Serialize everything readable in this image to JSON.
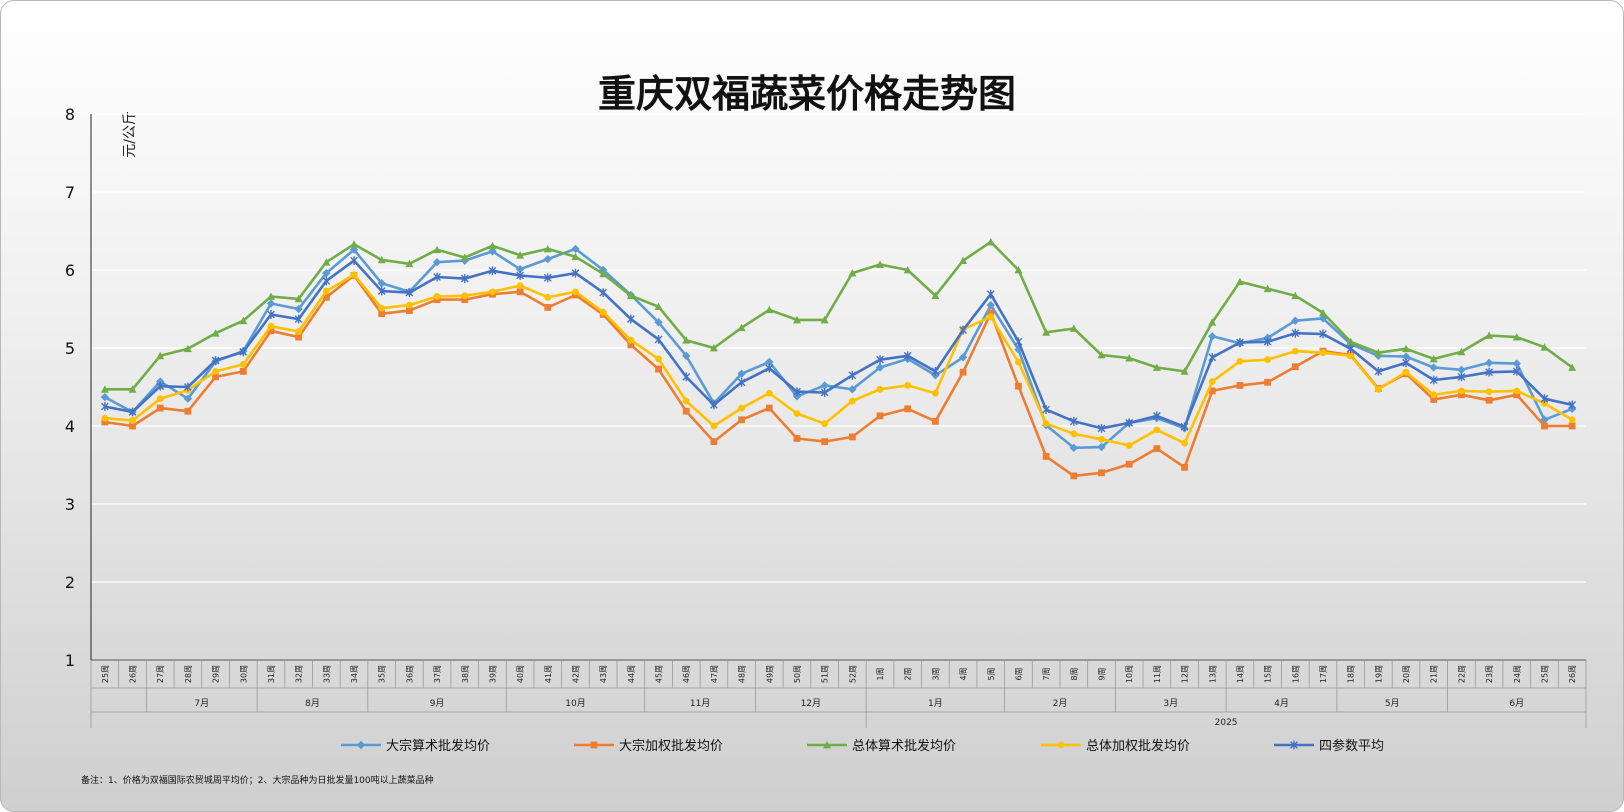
{
  "chart_data": {
    "type": "line",
    "title": "重庆双福蔬菜价格走势图",
    "ylabel": "元/公斤",
    "ylim": [
      1,
      8
    ],
    "yticks": [
      1,
      2,
      3,
      4,
      5,
      6,
      7,
      8
    ],
    "grid": true,
    "legend_position": "bottom",
    "x": [
      "25周",
      "26周",
      "27周",
      "28周",
      "29周",
      "30周",
      "31周",
      "32周",
      "33周",
      "34周",
      "35周",
      "36周",
      "37周",
      "38周",
      "39周",
      "40周",
      "41周",
      "42周",
      "43周",
      "44周",
      "45周",
      "46周",
      "47周",
      "48周",
      "49周",
      "50周",
      "51周",
      "52周",
      "1周",
      "2周",
      "3周",
      "4周",
      "5周",
      "6周",
      "7周",
      "8周",
      "9周",
      "10周",
      "11周",
      "12周",
      "13周",
      "14周",
      "15周",
      "16周",
      "17周",
      "18周",
      "19周",
      "20周",
      "21周",
      "22周",
      "23周",
      "24周",
      "25周",
      "26周"
    ],
    "month_groups": [
      {
        "label": "",
        "start": 0,
        "end": 1
      },
      {
        "label": "7月",
        "start": 2,
        "end": 5
      },
      {
        "label": "8月",
        "start": 6,
        "end": 9
      },
      {
        "label": "9月",
        "start": 10,
        "end": 14
      },
      {
        "label": "10月",
        "start": 15,
        "end": 19
      },
      {
        "label": "11月",
        "start": 20,
        "end": 23
      },
      {
        "label": "12月",
        "start": 24,
        "end": 27
      },
      {
        "label": "1月",
        "start": 28,
        "end": 32
      },
      {
        "label": "2月",
        "start": 33,
        "end": 36
      },
      {
        "label": "3月",
        "start": 37,
        "end": 40
      },
      {
        "label": "4月",
        "start": 41,
        "end": 44
      },
      {
        "label": "5月",
        "start": 45,
        "end": 48
      },
      {
        "label": "6月",
        "start": 49,
        "end": 53
      }
    ],
    "year_groups": [
      {
        "label": "",
        "start": 0,
        "end": 27
      },
      {
        "label": "2025",
        "start": 28,
        "end": 53
      }
    ],
    "series": [
      {
        "name": "大宗算术批发均价",
        "color": "#5b9bd5",
        "marker": "diamond",
        "values": [
          4.37,
          4.18,
          4.57,
          4.35,
          4.83,
          4.96,
          5.57,
          5.5,
          5.96,
          6.26,
          5.83,
          5.72,
          6.1,
          6.12,
          6.24,
          6.01,
          6.14,
          6.27,
          6.0,
          5.68,
          5.33,
          4.9,
          4.29,
          4.67,
          4.82,
          4.38,
          4.52,
          4.47,
          4.75,
          4.86,
          4.65,
          4.88,
          5.55,
          4.98,
          4.01,
          3.72,
          3.73,
          4.04,
          4.1,
          3.97,
          5.15,
          5.06,
          5.13,
          5.35,
          5.38,
          5.05,
          4.9,
          4.89,
          4.75,
          4.72,
          4.81,
          4.8,
          4.08,
          4.22
        ]
      },
      {
        "name": "大宗加权批发均价",
        "color": "#ed7d31",
        "marker": "square",
        "values": [
          4.05,
          4.0,
          4.23,
          4.19,
          4.63,
          4.7,
          5.22,
          5.14,
          5.65,
          5.93,
          5.44,
          5.48,
          5.62,
          5.62,
          5.69,
          5.72,
          5.52,
          5.68,
          5.43,
          5.04,
          4.73,
          4.19,
          3.8,
          4.08,
          4.23,
          3.84,
          3.8,
          3.86,
          4.13,
          4.22,
          4.06,
          4.69,
          5.45,
          4.51,
          3.61,
          3.36,
          3.4,
          3.51,
          3.71,
          3.47,
          4.45,
          4.52,
          4.56,
          4.76,
          4.96,
          4.91,
          4.48,
          4.67,
          4.34,
          4.4,
          4.33,
          4.4,
          4.0,
          4.0
        ]
      },
      {
        "name": "总体算术批发均价",
        "color": "#70ad47",
        "marker": "triangle",
        "values": [
          4.47,
          4.47,
          4.9,
          4.99,
          5.19,
          5.35,
          5.66,
          5.63,
          6.1,
          6.33,
          6.13,
          6.08,
          6.26,
          6.16,
          6.31,
          6.19,
          6.27,
          6.17,
          5.95,
          5.67,
          5.53,
          5.1,
          5.0,
          5.26,
          5.49,
          5.36,
          5.36,
          5.96,
          6.07,
          6.0,
          5.67,
          6.12,
          6.36,
          6.0,
          5.2,
          5.25,
          4.91,
          4.87,
          4.75,
          4.7,
          5.33,
          5.85,
          5.76,
          5.67,
          5.45,
          5.08,
          4.94,
          4.99,
          4.86,
          4.95,
          5.16,
          5.14,
          5.01,
          4.75
        ]
      },
      {
        "name": "总体加权批发均价",
        "color": "#ffc000",
        "marker": "circle",
        "values": [
          4.1,
          4.07,
          4.35,
          4.46,
          4.7,
          4.79,
          5.28,
          5.21,
          5.73,
          5.94,
          5.51,
          5.55,
          5.66,
          5.67,
          5.72,
          5.8,
          5.65,
          5.72,
          5.46,
          5.1,
          4.86,
          4.32,
          4.0,
          4.23,
          4.42,
          4.16,
          4.03,
          4.32,
          4.47,
          4.52,
          4.42,
          5.24,
          5.4,
          4.82,
          4.03,
          3.9,
          3.83,
          3.75,
          3.95,
          3.78,
          4.57,
          4.83,
          4.85,
          4.96,
          4.94,
          4.9,
          4.47,
          4.69,
          4.4,
          4.45,
          4.44,
          4.45,
          4.29,
          4.08
        ]
      },
      {
        "name": "四参数平均",
        "color": "#4472c4",
        "marker": "star",
        "values": [
          4.25,
          4.18,
          4.51,
          4.5,
          4.84,
          4.95,
          5.43,
          5.37,
          5.86,
          6.12,
          5.73,
          5.71,
          5.91,
          5.89,
          5.99,
          5.93,
          5.9,
          5.96,
          5.71,
          5.37,
          5.11,
          4.63,
          4.27,
          4.56,
          4.74,
          4.44,
          4.43,
          4.65,
          4.85,
          4.9,
          4.7,
          5.23,
          5.69,
          5.08,
          4.21,
          4.06,
          3.97,
          4.04,
          4.13,
          3.99,
          4.88,
          5.07,
          5.08,
          5.19,
          5.18,
          4.99,
          4.7,
          4.81,
          4.59,
          4.63,
          4.69,
          4.7,
          4.35,
          4.27
        ]
      }
    ]
  },
  "footnote": "备注：1、价格为双福国际农贸城周平均价；2、大宗品种为日批发量100吨以上蔬菜品种"
}
